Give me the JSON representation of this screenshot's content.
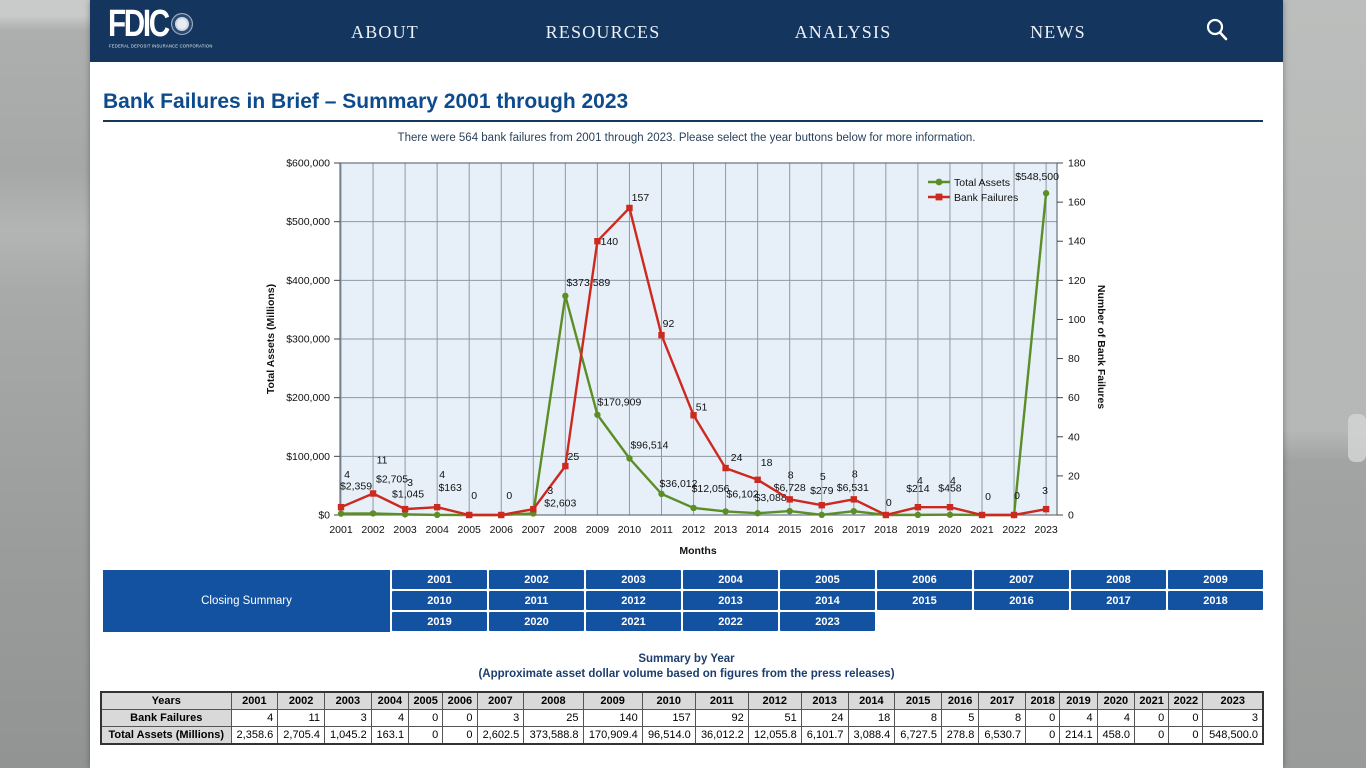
{
  "colors": {
    "nav_bg": "#14355d",
    "accent_blue": "#1351a1",
    "title_blue": "#0d4b8c",
    "heading_navy": "#1c3e6e",
    "plot_bg": "#e7f0f8",
    "grid_line": "#8d99a5",
    "series_green": "#5c8e27",
    "series_red": "#cc2a20",
    "table_header_bg": "#d9d9d9"
  },
  "nav": {
    "brand": {
      "name": "FDIC",
      "tagline": "FEDERAL DEPOSIT INSURANCE CORPORATION"
    },
    "items": [
      {
        "label": "ABOUT"
      },
      {
        "label": "RESOURCES"
      },
      {
        "label": "ANALYSIS"
      },
      {
        "label": "NEWS"
      }
    ],
    "search_icon": "magnifying-glass"
  },
  "page": {
    "title": "Bank Failures in Brief – Summary 2001 through 2023",
    "intro": "There were 564 bank failures from 2001 through 2023. Please select the year buttons below for more information."
  },
  "chart_data": {
    "type": "line",
    "title": "",
    "xlabel": "Months",
    "ylabel_left": "Total Assets (Millions)",
    "ylabel_right": "Number of Bank Failures",
    "grid": true,
    "legend_position": "top-right",
    "categories": [
      "2001",
      "2002",
      "2003",
      "2004",
      "2005",
      "2006",
      "2007",
      "2008",
      "2009",
      "2010",
      "2011",
      "2012",
      "2013",
      "2014",
      "2015",
      "2016",
      "2017",
      "2018",
      "2019",
      "2020",
      "2021",
      "2022",
      "2023"
    ],
    "left_axis": {
      "min": 0,
      "max": 600000,
      "step": 100000,
      "tick_labels": [
        "$0",
        "$100,000",
        "$200,000",
        "$300,000",
        "$400,000",
        "$500,000",
        "$600,000"
      ]
    },
    "right_axis": {
      "min": 0,
      "max": 180,
      "step": 20,
      "tick_labels": [
        "0",
        "20",
        "40",
        "60",
        "80",
        "100",
        "120",
        "140",
        "160",
        "180"
      ]
    },
    "series": [
      {
        "name": "Total Assets",
        "axis": "left",
        "color": "#5c8e27",
        "marker": "circle",
        "values": [
          2358.6,
          2705.4,
          1045.2,
          163.1,
          0,
          0,
          2602.5,
          373588.8,
          170909.4,
          96514.0,
          36012.2,
          12055.8,
          6101.7,
          3088.4,
          6727.5,
          278.8,
          6530.7,
          0,
          214.1,
          458.0,
          0,
          0,
          548500.0
        ],
        "labels": [
          "$2,359",
          "$2,705",
          "$1,045",
          "$163",
          "",
          "",
          "$2,603",
          "$373,589",
          "$170,909",
          "$96,514",
          "$36,012",
          "$12,056",
          "$6,102",
          "$3,088",
          "$6,728",
          "$279",
          "$6,531",
          "",
          "$214",
          "$458",
          "",
          "",
          "$548,500"
        ]
      },
      {
        "name": "Bank Failures",
        "axis": "right",
        "color": "#cc2a20",
        "marker": "square",
        "values": [
          4,
          11,
          3,
          4,
          0,
          0,
          3,
          25,
          140,
          157,
          92,
          51,
          24,
          18,
          8,
          5,
          8,
          0,
          4,
          4,
          0,
          0,
          3
        ],
        "labels": [
          "4",
          "11",
          "3",
          "4",
          "0",
          "0",
          "3",
          "25",
          "140",
          "157",
          "92",
          "51",
          "24",
          "18",
          "8",
          "5",
          "8",
          "0",
          "4",
          "4",
          "0",
          "0",
          "3"
        ]
      }
    ]
  },
  "year_buttons": {
    "summary_label": "Closing Summary",
    "rows": [
      [
        "2001",
        "2002",
        "2003",
        "2004",
        "2005",
        "2006",
        "2007",
        "2008",
        "2009"
      ],
      [
        "2010",
        "2011",
        "2012",
        "2013",
        "2014",
        "2015",
        "2016",
        "2017",
        "2018"
      ],
      [
        "2019",
        "2020",
        "2021",
        "2022",
        "2023"
      ]
    ]
  },
  "summary_table": {
    "title": "Summary by Year",
    "subtitle": "(Approximate asset dollar volume based on figures from the press releases)",
    "row_headers": [
      "Years",
      "Bank Failures",
      "Total Assets (Millions)"
    ],
    "years": [
      "2001",
      "2002",
      "2003",
      "2004",
      "2005",
      "2006",
      "2007",
      "2008",
      "2009",
      "2010",
      "2011",
      "2012",
      "2013",
      "2014",
      "2015",
      "2016",
      "2017",
      "2018",
      "2019",
      "2020",
      "2021",
      "2022",
      "2023"
    ],
    "bank_failures": [
      "4",
      "11",
      "3",
      "4",
      "0",
      "0",
      "3",
      "25",
      "140",
      "157",
      "92",
      "51",
      "24",
      "18",
      "8",
      "5",
      "8",
      "0",
      "4",
      "4",
      "0",
      "0",
      "3"
    ],
    "total_assets": [
      "2,358.6",
      "2,705.4",
      "1,045.2",
      "163.1",
      "0",
      "0",
      "2,602.5",
      "373,588.8",
      "170,909.4",
      "96,514.0",
      "36,012.2",
      "12,055.8",
      "6,101.7",
      "3,088.4",
      "6,727.5",
      "278.8",
      "6,530.7",
      "0",
      "214.1",
      "458.0",
      "0",
      "0",
      "548,500.0"
    ]
  }
}
